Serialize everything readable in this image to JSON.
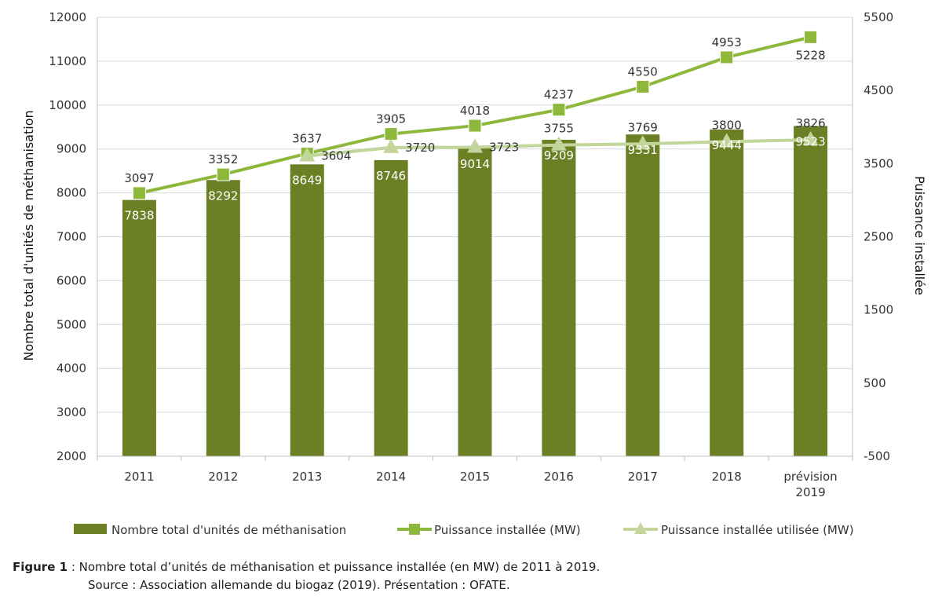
{
  "chart_data": {
    "type": "bar",
    "categories": [
      "2011",
      "2012",
      "2013",
      "2014",
      "2015",
      "2016",
      "2017",
      "2018",
      "prévision|2019"
    ],
    "y_left": {
      "label": "Nombre total d'unités de méthanisation",
      "ylim": [
        2000,
        12000
      ],
      "ticks": [
        2000,
        3000,
        4000,
        5000,
        6000,
        7000,
        8000,
        9000,
        10000,
        11000,
        12000
      ]
    },
    "y_right": {
      "label": "Puissance installée",
      "ylim": [
        -500,
        5500
      ],
      "ticks": [
        -500,
        500,
        1500,
        2500,
        3500,
        4500,
        5500
      ]
    },
    "series": [
      {
        "name": "Nombre total d'unités de méthanisation",
        "kind": "bar",
        "axis": "left",
        "color": "#6b7f24",
        "values": [
          7838,
          8292,
          8649,
          8746,
          9014,
          9209,
          9331,
          9444,
          9523
        ]
      },
      {
        "name": "Puissance installée (MW)",
        "kind": "line",
        "marker": "square",
        "axis": "right",
        "color": "#8db83c",
        "values": [
          3097,
          3352,
          3637,
          3905,
          4018,
          4237,
          4550,
          4953,
          5228
        ]
      },
      {
        "name": "Puissance installée utilisée (MW)",
        "kind": "line",
        "marker": "triangle",
        "axis": "right",
        "color": "#c2d59a",
        "values": [
          null,
          null,
          3604,
          3720,
          3723,
          3755,
          3769,
          3800,
          3826
        ]
      }
    ],
    "grid": "horizontal",
    "legend": "bottom"
  },
  "caption": {
    "figure": "Figure 1",
    "text": " : Nombre total d’unités de méthanisation et puissance installée (en MW) de 2011 à 2019.",
    "source": "Source : Association allemande du biogaz (2019). Présentation : OFATE."
  }
}
